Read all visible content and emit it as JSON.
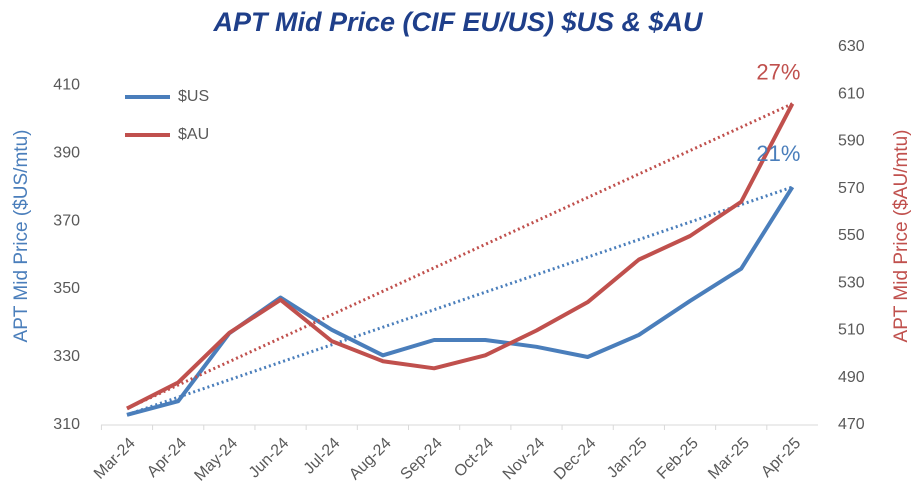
{
  "chart_data": {
    "type": "line",
    "title": "APT Mid Price (CIF EU/US) $US & $AU",
    "ylabel": "APT Mid Price ($US/mtu)",
    "y2label": "APT Mid Price ($AU/mtu)",
    "categories": [
      "Mar-24",
      "Apr-24",
      "May-24",
      "Jun-24",
      "Jul-24",
      "Aug-24",
      "Sep-24",
      "Oct-24",
      "Nov-24",
      "Dec-24",
      "Jan-25",
      "Feb-25",
      "Mar-25",
      "Apr-25"
    ],
    "series": [
      {
        "name": "$US",
        "color": "#4a7ebb",
        "values": [
          313,
          317,
          337,
          347.5,
          338,
          330.5,
          335,
          335,
          333,
          330,
          336.5,
          346.5,
          356,
          380
        ]
      },
      {
        "name": "$AU",
        "color": "#c0504d",
        "axis": "y2",
        "values": [
          477,
          488,
          509,
          523,
          505.5,
          497,
          494,
          499.5,
          510,
          522,
          540,
          550,
          564.5,
          606
        ]
      }
    ],
    "annotations": [
      "21%",
      "27%"
    ],
    "ylim": [
      310,
      421.2
    ],
    "yticks": [
      310,
      330,
      350,
      370,
      390,
      410
    ],
    "y2lim": [
      470,
      630
    ],
    "y2ticks": [
      470,
      490,
      510,
      530,
      550,
      570,
      590,
      610,
      630
    ],
    "legend": "upper left",
    "grid": false
  }
}
